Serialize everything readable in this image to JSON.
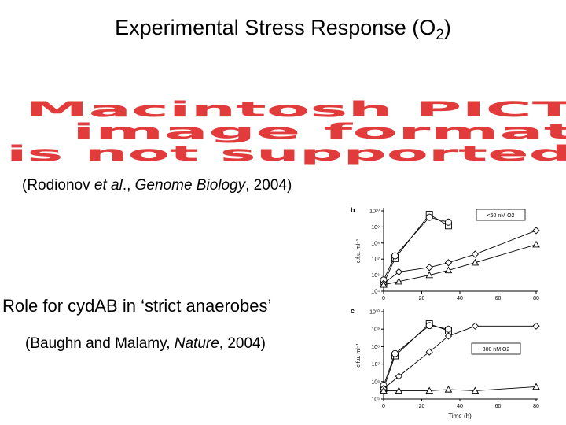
{
  "slide": {
    "title_pre": "Experimental Stress Response (O",
    "title_sub": "2",
    "title_post": ")",
    "placeholder_lines": [
      "Macintosh PICT",
      "image format",
      "is not supported"
    ],
    "citation1": {
      "pre": "(Rodionov ",
      "italic1": "et al",
      "mid": "., ",
      "italic2": "Genome Biology",
      "post": ", 2004)"
    },
    "heading2": "Role for cydAB in ‘strict anaerobes’",
    "citation2": {
      "pre": "(Baughn and Malamy, ",
      "italic": "Nature",
      "post": ", 2004)"
    }
  },
  "colors": {
    "placeholder": "#e23b3b",
    "ink": "#000000"
  },
  "chart_data": [
    {
      "type": "line",
      "panel": "b",
      "xlabel": "",
      "ylabel": "c.f.u. ml⁻¹",
      "legend": "<60 nM O2",
      "x_ticks": [
        "0",
        "20",
        "40",
        "60",
        "80"
      ],
      "y_ticks": [
        "10¹⁰",
        "10⁹",
        "10⁸",
        "10⁷",
        "10⁶",
        "10⁵"
      ],
      "xlim": [
        0,
        80
      ],
      "ylim_log10": [
        5,
        10
      ],
      "series": [
        {
          "marker": "square",
          "x": [
            0,
            6,
            24,
            34
          ],
          "y": [
            300000.0,
            11000000.0,
            6000000000.0,
            1200000000.0
          ]
        },
        {
          "marker": "circle",
          "x": [
            0,
            6,
            24,
            34
          ],
          "y": [
            500000.0,
            16000000.0,
            4000000000.0,
            2000000000.0
          ]
        },
        {
          "marker": "diamond",
          "x": [
            0,
            8,
            24,
            34,
            48,
            80
          ],
          "y": [
            300000.0,
            1600000.0,
            3000000.0,
            6000000.0,
            20000000.0,
            600000000.0
          ]
        },
        {
          "marker": "triangle",
          "x": [
            0,
            8,
            24,
            34,
            48,
            80
          ],
          "y": [
            250000.0,
            400000.0,
            1000000.0,
            2000000.0,
            6000000.0,
            80000000.0
          ]
        }
      ]
    },
    {
      "type": "line",
      "panel": "c",
      "xlabel": "Time (h)",
      "ylabel": "c.f.u. ml⁻¹",
      "legend": "300 nM O2",
      "x_ticks": [
        "0",
        "20",
        "40",
        "60",
        "80"
      ],
      "y_ticks": [
        "10¹⁰",
        "10⁹",
        "10⁸",
        "10⁷",
        "10⁶",
        "10⁵"
      ],
      "xlim": [
        0,
        80
      ],
      "ylim_log10": [
        5,
        10
      ],
      "series": [
        {
          "marker": "square",
          "x": [
            0,
            6,
            24,
            34
          ],
          "y": [
            400000.0,
            30000000.0,
            2000000000.0,
            800000000.0
          ]
        },
        {
          "marker": "circle",
          "x": [
            0,
            6,
            24,
            34
          ],
          "y": [
            600000.0,
            40000000.0,
            1600000000.0,
            1000000000.0
          ]
        },
        {
          "marker": "diamond",
          "x": [
            0,
            8,
            24,
            34,
            48,
            80
          ],
          "y": [
            400000.0,
            2000000.0,
            50000000.0,
            400000000.0,
            1500000000.0,
            1500000000.0
          ]
        },
        {
          "marker": "triangle",
          "x": [
            0,
            8,
            24,
            34,
            48,
            80
          ],
          "y": [
            300000.0,
            300000.0,
            300000.0,
            350000.0,
            300000.0,
            500000.0
          ]
        }
      ]
    }
  ]
}
